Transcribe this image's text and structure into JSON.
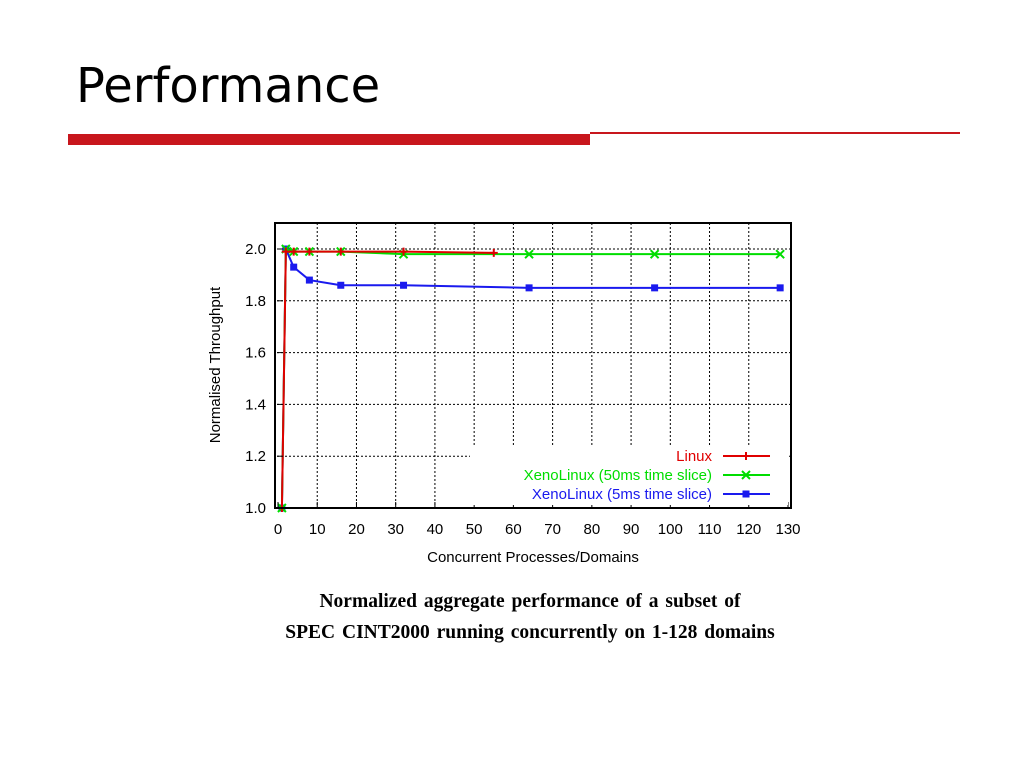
{
  "slide": {
    "title": "Performance",
    "accent_color": "#c8161d"
  },
  "chart_data": {
    "type": "line",
    "xlabel": "Concurrent Processes/Domains",
    "ylabel": "Normalised Throughput",
    "xlim": [
      0,
      130
    ],
    "ylim": [
      1.0,
      2.0
    ],
    "xticks": [
      "0",
      "10",
      "20",
      "30",
      "40",
      "50",
      "60",
      "70",
      "80",
      "90",
      "100",
      "110",
      "120",
      "130"
    ],
    "yticks": [
      "1.0",
      "1.2",
      "1.4",
      "1.6",
      "1.8",
      "2.0"
    ],
    "grid": true,
    "legend_position": "bottom-right",
    "series": [
      {
        "name": "Linux",
        "color": "#e00000",
        "marker": "plus",
        "x": [
          1,
          2,
          4,
          8,
          16,
          32,
          55
        ],
        "y": [
          1.0,
          1.99,
          1.99,
          1.99,
          1.99,
          1.99,
          1.985
        ]
      },
      {
        "name": "XenoLinux (50ms time slice)",
        "color": "#00dd00",
        "marker": "cross",
        "x": [
          1,
          2,
          4,
          8,
          16,
          32,
          64,
          96,
          128
        ],
        "y": [
          1.0,
          2.0,
          1.99,
          1.99,
          1.99,
          1.98,
          1.98,
          1.98,
          1.98
        ]
      },
      {
        "name": "XenoLinux (5ms time slice)",
        "color": "#1a1aee",
        "marker": "square",
        "x": [
          1,
          2,
          4,
          8,
          16,
          32,
          64,
          96,
          128
        ],
        "y": [
          1.0,
          2.0,
          1.93,
          1.88,
          1.86,
          1.86,
          1.85,
          1.85,
          1.85
        ]
      }
    ]
  },
  "caption": {
    "line1": "Normalized aggregate performance of a subset of",
    "line2": "SPEC CINT2000 running concurrently on 1-128 domains"
  }
}
